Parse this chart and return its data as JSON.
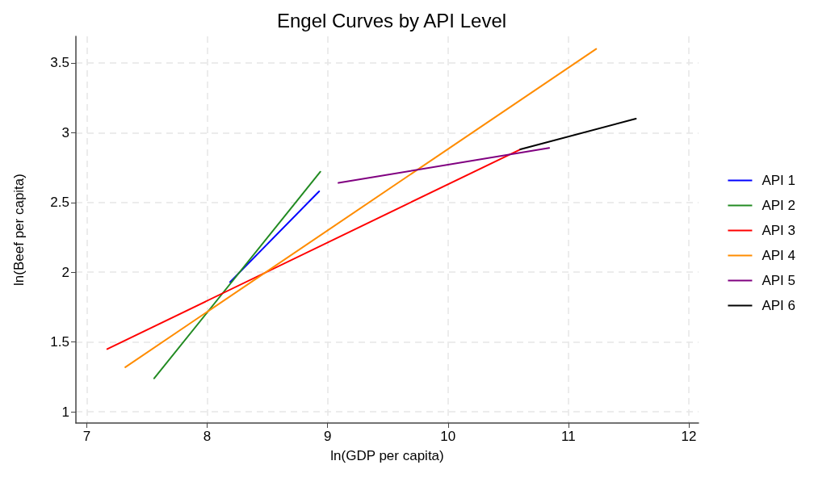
{
  "chart_data": {
    "type": "line",
    "title": "Engel Curves by API Level",
    "xlabel": "ln(GDP per capita)",
    "ylabel": "ln(Beef per capita)",
    "xlim": [
      6.91,
      12.08
    ],
    "xticks": [
      7,
      8,
      9,
      10,
      11,
      12
    ],
    "ylim": [
      0.92,
      3.69
    ],
    "yticks": [
      1,
      1.5,
      2,
      2.5,
      3,
      3.5
    ],
    "grid": true,
    "legend": "right",
    "marker": "none",
    "line_style": "solid",
    "series": [
      {
        "name": "API 1",
        "color": "#0000ff",
        "x": [
          8.19,
          8.93
        ],
        "values": [
          1.93,
          2.58
        ]
      },
      {
        "name": "API 2",
        "color": "#228b22",
        "x": [
          7.56,
          8.94
        ],
        "values": [
          1.24,
          2.72
        ]
      },
      {
        "name": "API 3",
        "color": "#ff0000",
        "x": [
          7.17,
          10.6
        ],
        "values": [
          1.45,
          2.88
        ]
      },
      {
        "name": "API 4",
        "color": "#ff8c00",
        "x": [
          7.32,
          11.23
        ],
        "values": [
          1.32,
          3.6
        ]
      },
      {
        "name": "API 5",
        "color": "#800080",
        "x": [
          9.09,
          10.84
        ],
        "values": [
          2.64,
          2.89
        ]
      },
      {
        "name": "API 6",
        "color": "#000000",
        "x": [
          10.6,
          11.56
        ],
        "values": [
          2.88,
          3.1
        ]
      }
    ]
  }
}
